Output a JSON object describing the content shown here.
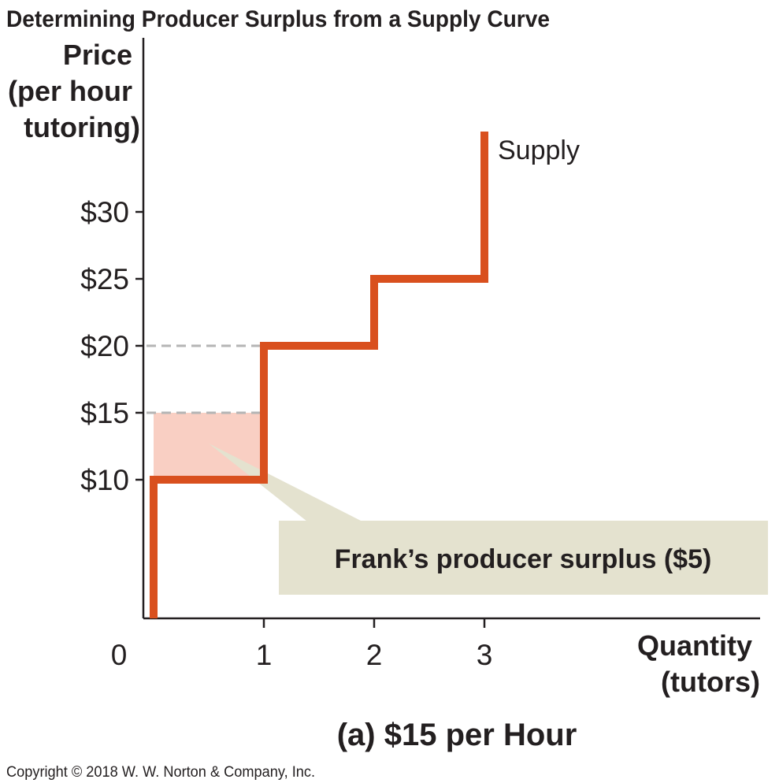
{
  "figure_title": "Determining Producer Surplus from a Supply Curve",
  "copyright": "Copyright © 2018 W. W. Norton & Company, Inc.",
  "chart_data": {
    "type": "line",
    "subtitle": "(a) $15 per Hour",
    "ylabel": [
      "Price",
      "(per hour",
      "tutoring)"
    ],
    "xlabel": [
      "Quantity",
      "(tutors)"
    ],
    "xlim": [
      0,
      4.5
    ],
    "ylim": [
      0,
      36
    ],
    "x_ticks": [
      {
        "value": 0,
        "label": "0"
      },
      {
        "value": 1,
        "label": "1"
      },
      {
        "value": 2,
        "label": "2"
      },
      {
        "value": 3,
        "label": "3"
      }
    ],
    "y_ticks": [
      {
        "value": 10,
        "label": "$10"
      },
      {
        "value": 15,
        "label": "$15"
      },
      {
        "value": 20,
        "label": "$20"
      },
      {
        "value": 25,
        "label": "$25"
      },
      {
        "value": 30,
        "label": "$30"
      }
    ],
    "series": [
      {
        "name": "Supply",
        "step_points": [
          {
            "x": 0,
            "y": 0
          },
          {
            "x": 0,
            "y": 10
          },
          {
            "x": 1,
            "y": 10
          },
          {
            "x": 1,
            "y": 20
          },
          {
            "x": 2,
            "y": 20
          },
          {
            "x": 2,
            "y": 25
          },
          {
            "x": 3,
            "y": 25
          },
          {
            "x": 3,
            "y": 36
          }
        ]
      }
    ],
    "reference_lines": [
      {
        "y": 15,
        "x_from": 0,
        "x_to": 1,
        "style": "dashed"
      },
      {
        "y": 20,
        "x_from": 0,
        "x_to": 1,
        "style": "dashed"
      }
    ],
    "shaded_area": {
      "x_from": 0,
      "x_to": 1,
      "y_from": 10,
      "y_to": 15
    },
    "annotation": "Frank’s producer surplus ($5)",
    "colors": {
      "supply": "#d9501e",
      "surplus_fill": "#f9cfc3",
      "callout_fill": "#e4e2cf",
      "dashed": "#b5b5b5",
      "axis": "#231f20"
    }
  }
}
